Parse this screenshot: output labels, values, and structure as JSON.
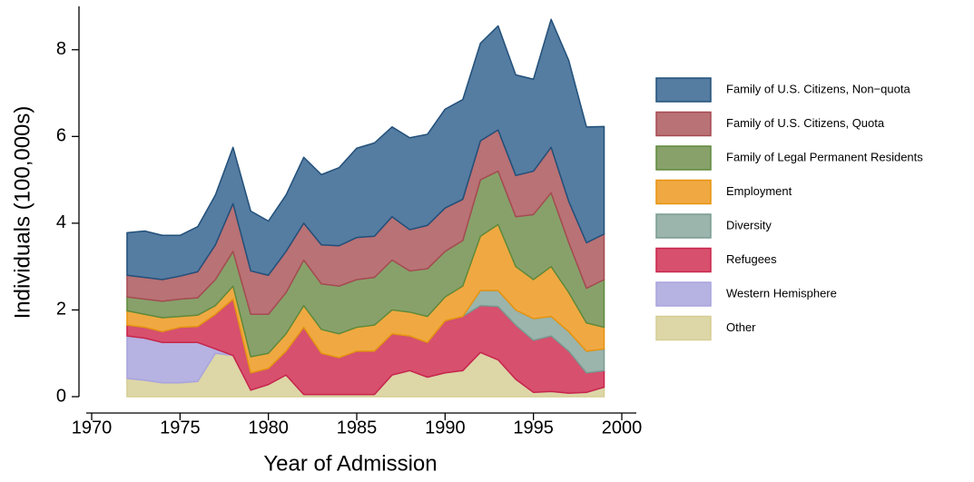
{
  "chart_data": {
    "type": "stacked_area",
    "x_label": "Year of Admission",
    "y_label": "Individuals (100,000s)",
    "x": [
      1972,
      1973,
      1974,
      1975,
      1976,
      1977,
      1978,
      1979,
      1980,
      1981,
      1982,
      1983,
      1984,
      1985,
      1986,
      1987,
      1988,
      1989,
      1990,
      1991,
      1992,
      1993,
      1994,
      1995,
      1996,
      1997,
      1998,
      1999
    ],
    "xlim": [
      1970,
      2000
    ],
    "xticks": [
      1970,
      1975,
      1980,
      1985,
      1990,
      1995,
      2000
    ],
    "ylim": [
      0,
      9
    ],
    "yticks": [
      0,
      2,
      4,
      6,
      8
    ],
    "series": [
      {
        "name": "Family of U.S. Citizens, Non−quota",
        "color": "#557ca1",
        "edge": "#22507a",
        "values": [
          0.98,
          1.07,
          1.02,
          0.94,
          1.04,
          1.15,
          1.3,
          1.38,
          1.25,
          1.3,
          1.52,
          1.62,
          1.8,
          2.06,
          2.15,
          2.07,
          2.12,
          2.1,
          2.28,
          2.3,
          2.25,
          2.4,
          2.32,
          2.12,
          2.95,
          3.25,
          2.67,
          2.48
        ]
      },
      {
        "name": "Family of U.S. Citizens, Quota",
        "color": "#b97275",
        "edge": "#a64b53",
        "values": [
          0.5,
          0.5,
          0.5,
          0.53,
          0.6,
          0.8,
          1.1,
          1.0,
          0.9,
          0.95,
          0.85,
          0.9,
          0.93,
          0.97,
          0.95,
          1.0,
          0.95,
          1.0,
          1.0,
          0.95,
          0.9,
          0.95,
          0.95,
          1.0,
          1.05,
          0.95,
          1.05,
          1.05
        ]
      },
      {
        "name": "Family of Legal Permanent Residents",
        "color": "#88a16b",
        "edge": "#5e8a3c",
        "values": [
          0.32,
          0.35,
          0.38,
          0.4,
          0.4,
          0.6,
          0.8,
          0.98,
          0.9,
          0.95,
          1.05,
          1.05,
          1.1,
          1.1,
          1.1,
          1.15,
          0.95,
          1.1,
          1.05,
          1.05,
          1.3,
          1.23,
          1.15,
          1.5,
          1.7,
          1.15,
          0.8,
          1.1
        ]
      },
      {
        "name": "Employment",
        "color": "#f0a942",
        "edge": "#e8930f",
        "values": [
          0.33,
          0.3,
          0.32,
          0.25,
          0.26,
          0.2,
          0.3,
          0.37,
          0.35,
          0.4,
          0.5,
          0.55,
          0.55,
          0.55,
          0.6,
          0.55,
          0.55,
          0.6,
          0.55,
          0.7,
          1.25,
          1.52,
          1.0,
          0.9,
          1.15,
          0.9,
          0.65,
          0.5
        ]
      },
      {
        "name": "Diversity",
        "color": "#9bb4ac",
        "edge": "#7a9c92",
        "values": [
          0,
          0,
          0,
          0,
          0,
          0,
          0,
          0,
          0,
          0,
          0,
          0,
          0,
          0,
          0,
          0,
          0,
          0,
          0,
          0,
          0.35,
          0.37,
          0.35,
          0.5,
          0.45,
          0.45,
          0.5,
          0.5
        ]
      },
      {
        "name": "Refugees",
        "color": "#d7506e",
        "edge": "#c8264a",
        "values": [
          0.25,
          0.25,
          0.25,
          0.35,
          0.37,
          0.8,
          1.3,
          0.4,
          0.37,
          0.55,
          1.55,
          0.95,
          0.85,
          1.0,
          1.0,
          0.95,
          0.8,
          0.8,
          1.2,
          1.25,
          1.08,
          1.23,
          1.25,
          1.2,
          1.28,
          0.97,
          0.45,
          0.38
        ]
      },
      {
        "name": "Western Hemisphere",
        "color": "#b6b2e1",
        "edge": "#a9a4de",
        "values": [
          0.98,
          0.97,
          0.93,
          0.93,
          0.9,
          0.1,
          0,
          0,
          0,
          0,
          0,
          0,
          0,
          0,
          0,
          0,
          0,
          0,
          0,
          0,
          0,
          0,
          0,
          0,
          0,
          0,
          0,
          0
        ]
      },
      {
        "name": "Other",
        "color": "#ddd6a7",
        "edge": "#d6cd94",
        "values": [
          0.42,
          0.38,
          0.32,
          0.32,
          0.35,
          1.0,
          0.95,
          0.15,
          0.28,
          0.5,
          0.05,
          0.05,
          0.05,
          0.05,
          0.05,
          0.5,
          0.6,
          0.45,
          0.55,
          0.6,
          1.02,
          0.85,
          0.4,
          0.1,
          0.12,
          0.08,
          0.1,
          0.22
        ]
      }
    ]
  }
}
